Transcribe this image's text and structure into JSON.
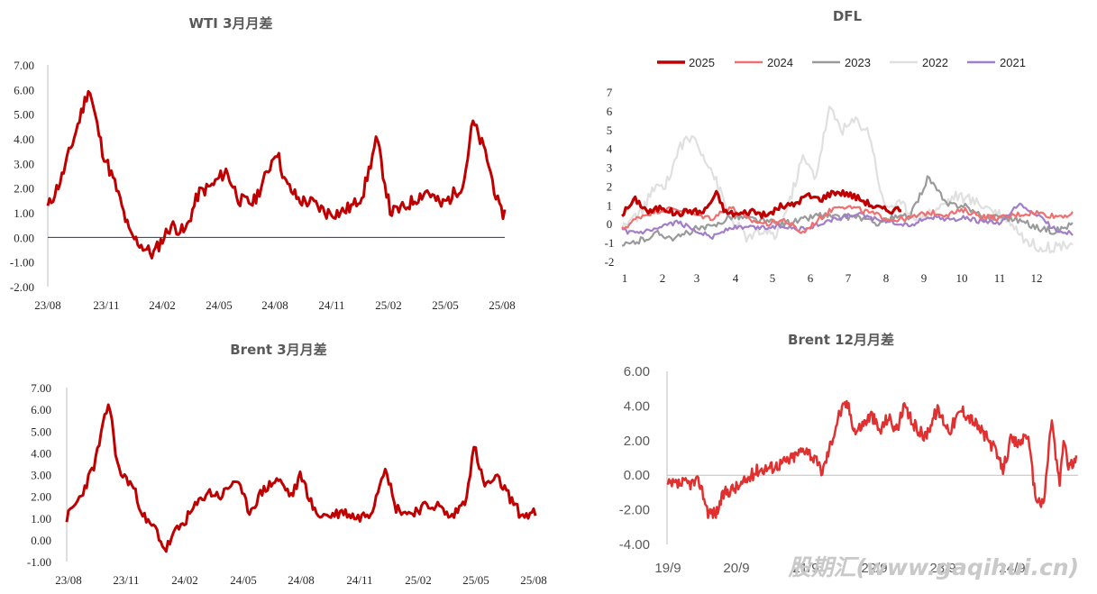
{
  "watermark": "股期汇(www.gaqihui.cn)",
  "colors": {
    "wti": "#c00000",
    "brent": "#c00000",
    "brent12": "#e03030",
    "y2025": "#c00000",
    "y2024": "#f07070",
    "y2023": "#9a9a9a",
    "y2022": "#e0e0e0",
    "y2021": "#a27ec8",
    "zero": "#1f3864"
  },
  "chart_data": [
    {
      "id": "wti",
      "type": "line",
      "title": "WTI 3月月差",
      "ylim": [
        -2,
        7
      ],
      "yticks": [
        "7.00",
        "6.00",
        "5.00",
        "4.00",
        "3.00",
        "2.00",
        "1.00",
        "0.00",
        "-1.00",
        "-2.00"
      ],
      "xticks": [
        "23/08",
        "23/11",
        "24/02",
        "24/05",
        "24/08",
        "24/11",
        "25/02",
        "25/05",
        "25/08"
      ],
      "x": [
        0,
        0.03,
        0.06,
        0.09,
        0.12,
        0.15,
        0.18,
        0.21,
        0.23,
        0.27,
        0.3,
        0.33,
        0.36,
        0.39,
        0.42,
        0.45,
        0.48,
        0.5,
        0.52,
        0.55,
        0.58,
        0.61,
        0.64,
        0.67,
        0.69,
        0.72,
        0.75,
        0.78,
        0.8,
        0.83,
        0.86,
        0.88,
        0.91,
        0.93,
        0.96,
        0.99
      ],
      "values": [
        1.2,
        2.4,
        4.2,
        6.1,
        3.5,
        2.0,
        0.1,
        -0.4,
        -0.7,
        0.5,
        0.2,
        1.8,
        2.1,
        2.7,
        1.5,
        1.4,
        2.6,
        3.6,
        2.2,
        1.5,
        1.4,
        1.0,
        1.0,
        1.3,
        1.8,
        4.0,
        1.0,
        1.2,
        1.5,
        1.9,
        1.3,
        1.6,
        2.2,
        4.7,
        3.3,
        1.0
      ]
    },
    {
      "id": "dfl",
      "type": "line",
      "title": "DFL",
      "ylim": [
        -2,
        7
      ],
      "yticks": [
        "7",
        "6",
        "5",
        "4",
        "3",
        "2",
        "1",
        "0",
        "-1",
        "-2"
      ],
      "xticks": [
        "1",
        "2",
        "3",
        "4",
        "5",
        "6",
        "7",
        "8",
        "9",
        "10",
        "11",
        "12"
      ],
      "series": [
        {
          "name": "2025",
          "x": [
            0,
            0.03,
            0.06,
            0.09,
            0.12,
            0.15,
            0.18,
            0.21,
            0.23,
            0.26,
            0.29,
            0.32,
            0.35,
            0.38,
            0.41,
            0.44,
            0.47,
            0.5,
            0.53,
            0.56,
            0.59,
            0.62
          ],
          "values": [
            0.5,
            1.3,
            0.6,
            0.9,
            0.5,
            0.7,
            0.6,
            1.6,
            0.6,
            0.5,
            0.7,
            0.4,
            0.9,
            1.0,
            1.5,
            1.3,
            1.7,
            1.6,
            1.3,
            0.9,
            0.7,
            0.8
          ]
        },
        {
          "name": "2024",
          "x": [
            0,
            0.04,
            0.08,
            0.12,
            0.16,
            0.2,
            0.24,
            0.28,
            0.32,
            0.36,
            0.4,
            0.44,
            0.48,
            0.52,
            0.56,
            0.6,
            0.64,
            0.68,
            0.72,
            0.76,
            0.8,
            0.84,
            0.88,
            0.92,
            0.96,
            1.0
          ],
          "values": [
            -0.3,
            0.4,
            0.7,
            0.8,
            0.5,
            0.3,
            0.9,
            0.2,
            0.0,
            0.2,
            -0.5,
            0.3,
            1.0,
            0.8,
            0.5,
            0.2,
            0.3,
            0.6,
            0.5,
            0.7,
            0.4,
            0.3,
            0.5,
            0.6,
            0.4,
            0.5
          ]
        },
        {
          "name": "2023",
          "x": [
            0,
            0.04,
            0.08,
            0.12,
            0.16,
            0.2,
            0.24,
            0.28,
            0.32,
            0.36,
            0.4,
            0.44,
            0.48,
            0.52,
            0.56,
            0.6,
            0.64,
            0.68,
            0.72,
            0.76,
            0.8,
            0.84,
            0.88,
            0.92,
            0.96,
            1.0
          ],
          "values": [
            -1.2,
            -0.9,
            -0.5,
            -0.8,
            -0.3,
            -0.2,
            0.4,
            0.3,
            0.1,
            0.0,
            0.2,
            0.5,
            0.3,
            0.4,
            0.0,
            0.3,
            0.4,
            2.5,
            1.0,
            1.0,
            0.3,
            0.4,
            0.2,
            -0.2,
            -0.4,
            0.0
          ]
        },
        {
          "name": "2022",
          "x": [
            0,
            0.04,
            0.07,
            0.1,
            0.13,
            0.16,
            0.2,
            0.24,
            0.28,
            0.31,
            0.34,
            0.37,
            0.4,
            0.43,
            0.46,
            0.49,
            0.52,
            0.55,
            0.58,
            0.62,
            0.66,
            0.7,
            0.74,
            0.78,
            0.82,
            0.86,
            0.9,
            0.94,
            0.98,
            1.0
          ],
          "values": [
            -0.2,
            0.5,
            1.8,
            2.2,
            4.2,
            4.6,
            2.8,
            0.3,
            -0.8,
            -0.4,
            -0.7,
            1.0,
            3.5,
            2.5,
            6.1,
            5.0,
            5.5,
            4.8,
            1.0,
            1.0,
            0.3,
            0.8,
            1.5,
            1.2,
            0.8,
            0.2,
            -1.0,
            -1.3,
            -1.1,
            -1.0
          ]
        },
        {
          "name": "2021",
          "x": [
            0,
            0.04,
            0.08,
            0.12,
            0.16,
            0.2,
            0.24,
            0.28,
            0.32,
            0.36,
            0.4,
            0.44,
            0.48,
            0.52,
            0.56,
            0.6,
            0.64,
            0.68,
            0.72,
            0.76,
            0.8,
            0.84,
            0.88,
            0.92,
            0.96,
            1.0
          ],
          "values": [
            -0.4,
            -0.5,
            -0.3,
            0.1,
            -0.3,
            -0.7,
            -0.2,
            -0.2,
            -0.2,
            -0.1,
            -0.3,
            0.0,
            0.3,
            0.5,
            0.3,
            0.1,
            -0.1,
            0.4,
            0.2,
            0.3,
            0.1,
            0.0,
            1.0,
            0.5,
            -0.3,
            -0.5
          ]
        }
      ]
    },
    {
      "id": "brent",
      "type": "line",
      "title": "Brent 3月月差",
      "ylim": [
        -1,
        7
      ],
      "yticks": [
        "7.00",
        "6.00",
        "5.00",
        "4.00",
        "3.00",
        "2.00",
        "1.00",
        "0.00",
        "-1.00"
      ],
      "xticks": [
        "23/08",
        "23/11",
        "24/02",
        "24/05",
        "24/08",
        "24/11",
        "25/02",
        "25/05",
        "25/08"
      ],
      "x": [
        0,
        0.03,
        0.06,
        0.09,
        0.11,
        0.14,
        0.17,
        0.19,
        0.21,
        0.23,
        0.25,
        0.27,
        0.3,
        0.33,
        0.36,
        0.39,
        0.42,
        0.45,
        0.48,
        0.5,
        0.53,
        0.56,
        0.59,
        0.62,
        0.65,
        0.68,
        0.7,
        0.73,
        0.76,
        0.79,
        0.82,
        0.85,
        0.87,
        0.89,
        0.92,
        0.95,
        0.97,
        0.99
      ],
      "values": [
        1.0,
        2.0,
        3.5,
        6.4,
        3.2,
        2.5,
        0.8,
        0.5,
        -0.5,
        0.3,
        0.8,
        1.4,
        2.2,
        2.0,
        2.8,
        1.3,
        2.3,
        2.8,
        2.0,
        3.0,
        1.2,
        1.1,
        1.3,
        1.0,
        1.3,
        3.5,
        1.5,
        1.2,
        1.5,
        1.6,
        1.0,
        1.8,
        4.3,
        2.5,
        2.8,
        1.8,
        1.1,
        1.2
      ]
    },
    {
      "id": "brent12",
      "type": "line",
      "title": "Brent 12月月差",
      "ylim": [
        -4,
        6
      ],
      "yticks": [
        "6.00",
        "4.00",
        "2.00",
        "0.00",
        "-2.00",
        "-4.00"
      ],
      "xticks": [
        "19/9",
        "20/9",
        "21/9",
        "22/9",
        "23/9",
        "24/9"
      ],
      "x": [
        0,
        0.04,
        0.08,
        0.1,
        0.12,
        0.14,
        0.18,
        0.22,
        0.26,
        0.3,
        0.34,
        0.38,
        0.4,
        0.42,
        0.44,
        0.46,
        0.48,
        0.5,
        0.52,
        0.54,
        0.56,
        0.58,
        0.6,
        0.63,
        0.66,
        0.69,
        0.72,
        0.75,
        0.78,
        0.8,
        0.82,
        0.84,
        0.86,
        0.88,
        0.9,
        0.92,
        0.94,
        0.95,
        0.96,
        0.97,
        0.98,
        1.0
      ],
      "values": [
        -0.6,
        -0.5,
        -0.4,
        -2.1,
        -2.2,
        -1.0,
        -0.6,
        0.3,
        0.5,
        0.9,
        1.6,
        0.2,
        1.8,
        3.5,
        4.2,
        2.5,
        3.0,
        3.5,
        2.5,
        3.4,
        2.6,
        3.9,
        3.0,
        2.2,
        3.8,
        2.6,
        3.8,
        3.1,
        2.2,
        1.5,
        0.3,
        2.0,
        1.8,
        2.5,
        -1.2,
        -1.8,
        3.4,
        1.0,
        -0.5,
        2.3,
        0.5,
        0.8
      ]
    }
  ]
}
